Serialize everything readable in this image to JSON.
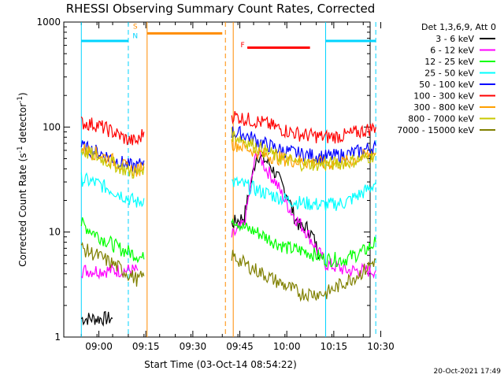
{
  "chart_data": {
    "type": "line",
    "title": "RHESSI Observing Summary Count Rates, Corrected",
    "xlabel": "Start Time (03-Oct-14 08:54:22)",
    "ylabel_main": "Corrected Count Rate (s",
    "ylabel_sup1": "-1",
    "ylabel_mid": " detector",
    "ylabel_sup2": "-1",
    "ylabel_end": ")",
    "yscale": "log",
    "ylim": [
      1,
      1000
    ],
    "xlim_min": [
      -5.6,
      92.2
    ],
    "y_ticks": [
      {
        "v": 1,
        "label": "1"
      },
      {
        "v": 10,
        "label": "10"
      },
      {
        "v": 100,
        "label": "100"
      },
      {
        "v": 1000,
        "label": "1000"
      }
    ],
    "x_ticks": [
      {
        "v": 5.6,
        "label": "09:00"
      },
      {
        "v": 20.6,
        "label": "09:15"
      },
      {
        "v": 35.6,
        "label": "09:30"
      },
      {
        "v": 50.6,
        "label": "09:45"
      },
      {
        "v": 65.6,
        "label": "10:00"
      },
      {
        "v": 80.6,
        "label": "10:15"
      },
      {
        "v": 95.6,
        "label": "10:30"
      }
    ],
    "legend_header": "Det 1,3,6,9, Att 0",
    "series": [
      {
        "name": "3 - 6 keV",
        "color": "#000000",
        "segments": [
          [
            [
              0,
              1.5
            ],
            [
              10,
              1.5
            ]
          ],
          [
            [
              48,
              12
            ],
            [
              52,
              14
            ],
            [
              56,
              55
            ],
            [
              60,
              45
            ],
            [
              63,
              32
            ],
            [
              66,
              22
            ],
            [
              68,
              14
            ],
            [
              70,
              11
            ],
            [
              72,
              11
            ],
            [
              74,
              9
            ],
            [
              76,
              6
            ]
          ]
        ]
      },
      {
        "name": "6 - 12 keV",
        "color": "#ff00ff",
        "segments": [
          [
            [
              0,
              4.3
            ],
            [
              18,
              4.3
            ]
          ],
          [
            [
              48,
              9
            ],
            [
              52,
              12
            ],
            [
              56,
              60
            ],
            [
              59,
              40
            ],
            [
              62,
              30
            ],
            [
              65,
              20
            ],
            [
              68,
              14
            ],
            [
              72,
              10
            ],
            [
              75,
              7
            ],
            [
              78,
              5
            ],
            [
              85,
              4.3
            ],
            [
              94,
              4.3
            ]
          ]
        ]
      },
      {
        "name": "12 - 25 keV",
        "color": "#00ff00",
        "segments": [
          [
            [
              0,
              12
            ],
            [
              6,
              9
            ],
            [
              12,
              7
            ],
            [
              18,
              6
            ],
            [
              20,
              5.5
            ]
          ],
          [
            [
              48,
              14
            ],
            [
              52,
              11
            ],
            [
              56,
              10
            ],
            [
              62,
              8
            ],
            [
              66,
              7
            ],
            [
              72,
              6.5
            ],
            [
              78,
              5.5
            ],
            [
              84,
              5.5
            ],
            [
              90,
              6.5
            ],
            [
              94,
              8
            ]
          ]
        ]
      },
      {
        "name": "25 - 50 keV",
        "color": "#00ffff",
        "segments": [
          [
            [
              0,
              32
            ],
            [
              5,
              29
            ],
            [
              10,
              25
            ],
            [
              15,
              21
            ],
            [
              18,
              19
            ],
            [
              20,
              21
            ]
          ],
          [
            [
              48,
              30
            ],
            [
              52,
              28
            ],
            [
              58,
              24
            ],
            [
              64,
              21
            ],
            [
              70,
              19
            ],
            [
              78,
              18
            ],
            [
              84,
              19
            ],
            [
              88,
              22
            ],
            [
              92,
              26
            ],
            [
              94,
              30
            ]
          ]
        ]
      },
      {
        "name": "50 - 100 keV",
        "color": "#0000ff",
        "segments": [
          [
            [
              0,
              65
            ],
            [
              5,
              58
            ],
            [
              10,
              50
            ],
            [
              15,
              43
            ],
            [
              18,
              42
            ],
            [
              20,
              48
            ]
          ],
          [
            [
              48,
              90
            ],
            [
              52,
              85
            ],
            [
              58,
              70
            ],
            [
              64,
              60
            ],
            [
              70,
              55
            ],
            [
              78,
              52
            ],
            [
              84,
              54
            ],
            [
              90,
              60
            ],
            [
              94,
              66
            ]
          ]
        ]
      },
      {
        "name": "100 - 300 keV",
        "color": "#ff0000",
        "segments": [
          [
            [
              0,
              110
            ],
            [
              5,
              105
            ],
            [
              10,
              90
            ],
            [
              15,
              75
            ],
            [
              18,
              73
            ],
            [
              20,
              90
            ]
          ],
          [
            [
              48,
              130
            ],
            [
              52,
              120
            ],
            [
              58,
              110
            ],
            [
              64,
              95
            ],
            [
              70,
              85
            ],
            [
              78,
              80
            ],
            [
              84,
              83
            ],
            [
              90,
              92
            ],
            [
              94,
              100
            ]
          ]
        ]
      },
      {
        "name": "300 - 800 keV",
        "color": "#ffa000",
        "segments": [
          [
            [
              0,
              62
            ],
            [
              5,
              56
            ],
            [
              10,
              48
            ],
            [
              15,
              40
            ],
            [
              18,
              38
            ],
            [
              20,
              45
            ]
          ],
          [
            [
              48,
              70
            ],
            [
              52,
              65
            ],
            [
              58,
              55
            ],
            [
              64,
              50
            ],
            [
              70,
              47
            ],
            [
              78,
              45
            ],
            [
              84,
              46
            ],
            [
              90,
              52
            ],
            [
              94,
              57
            ]
          ]
        ]
      },
      {
        "name": "800 - 7000 keV",
        "color": "#c8c800",
        "segments": [
          [
            [
              0,
              60
            ],
            [
              5,
              52
            ],
            [
              10,
              45
            ],
            [
              15,
              38
            ],
            [
              18,
              36
            ],
            [
              20,
              42
            ]
          ],
          [
            [
              48,
              85
            ],
            [
              52,
              75
            ],
            [
              58,
              60
            ],
            [
              64,
              50
            ],
            [
              70,
              45
            ],
            [
              78,
              44
            ],
            [
              84,
              46
            ],
            [
              90,
              50
            ],
            [
              94,
              55
            ]
          ]
        ]
      },
      {
        "name": "7000 - 15000 keV",
        "color": "#808000",
        "segments": [
          [
            [
              0,
              7
            ],
            [
              5,
              6
            ],
            [
              10,
              5
            ],
            [
              15,
              4
            ],
            [
              18,
              3.5
            ],
            [
              20,
              3.8
            ]
          ],
          [
            [
              48,
              6
            ],
            [
              52,
              5
            ],
            [
              58,
              4
            ],
            [
              64,
              3.2
            ],
            [
              70,
              2.6
            ],
            [
              78,
              2.6
            ],
            [
              84,
              3.3
            ],
            [
              90,
              4.2
            ],
            [
              94,
              5.5
            ]
          ]
        ]
      }
    ],
    "lines": [
      {
        "name": "saa-bar-left",
        "color": "#00d4ff",
        "y": 660,
        "x0": 0,
        "x1": 15
      },
      {
        "name": "saa-bar-right",
        "color": "#00d4ff",
        "y": 660,
        "x0": 78,
        "x1": 94
      },
      {
        "name": "night-bar",
        "color": "#ff8c00",
        "y": 780,
        "x0": 21,
        "x1": 45
      },
      {
        "name": "flare-bar",
        "color": "#ff0000",
        "y": 570,
        "x0": 53,
        "x1": 73
      }
    ],
    "vlines": [
      {
        "name": "vline-saa-1",
        "color": "#00d4ff",
        "x": 0,
        "dashed": false
      },
      {
        "name": "vline-saa-2",
        "color": "#00d4ff",
        "x": 15,
        "dashed": true
      },
      {
        "name": "vline-night-1",
        "color": "#ff8c00",
        "x": 21,
        "dashed": false
      },
      {
        "name": "vline-night-2",
        "color": "#ff8c00",
        "x": 46,
        "dashed": true
      },
      {
        "name": "vline-flare",
        "color": "#ff8c00",
        "x": 48.5,
        "dashed": false
      },
      {
        "name": "vline-saa-3",
        "color": "#00d4ff",
        "x": 78,
        "dashed": false
      },
      {
        "name": "vline-saa-4",
        "color": "#00d4ff",
        "x": 94,
        "dashed": true
      }
    ],
    "markers": [
      {
        "name": "marker-s",
        "text": "S",
        "color": "#ff8c00",
        "x": 17.2,
        "y": 860
      },
      {
        "name": "marker-n",
        "text": "N",
        "color": "#00d4ff",
        "x": 17.2,
        "y": 700
      },
      {
        "name": "marker-f",
        "text": "F",
        "color": "#ff0000",
        "x": 51.5,
        "y": 575
      }
    ],
    "timestamp": "20-Oct-2021 17:49"
  }
}
